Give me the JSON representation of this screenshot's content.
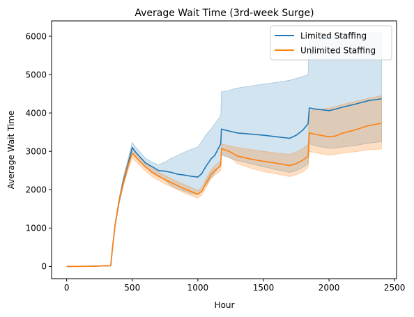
{
  "chart_data": {
    "type": "line",
    "title": "Average Wait Time (3rd-week Surge)",
    "xlabel": "Hour",
    "ylabel": "Average Wait Time",
    "xlim": [
      -115,
      2515
    ],
    "ylim": [
      -320,
      6400
    ],
    "xticks": [
      0,
      500,
      1000,
      1500,
      2000,
      2500
    ],
    "yticks": [
      0,
      1000,
      2000,
      3000,
      4000,
      5000,
      6000
    ],
    "grid": false,
    "legend_position": "top-right",
    "series": [
      {
        "name": "Limited Staffing",
        "color": "#1f77b4",
        "band_opacity": 0.2,
        "x": [
          0,
          200,
          336,
          350,
          370,
          400,
          430,
          470,
          500,
          520,
          560,
          600,
          650,
          700,
          750,
          800,
          850,
          900,
          950,
          1000,
          1030,
          1060,
          1100,
          1130,
          1160,
          1175,
          1180,
          1250,
          1300,
          1400,
          1500,
          1600,
          1700,
          1750,
          1800,
          1840,
          1850,
          1900,
          2000,
          2050,
          2100,
          2200,
          2300,
          2400
        ],
        "y": [
          0,
          5,
          20,
          500,
          1100,
          1700,
          2200,
          2700,
          3100,
          3000,
          2850,
          2700,
          2600,
          2500,
          2480,
          2450,
          2400,
          2380,
          2350,
          2330,
          2420,
          2600,
          2800,
          2900,
          3100,
          3200,
          3580,
          3520,
          3480,
          3450,
          3420,
          3380,
          3340,
          3420,
          3550,
          3720,
          4130,
          4100,
          4060,
          4100,
          4150,
          4230,
          4320,
          4370
        ],
        "upper": [
          0,
          5,
          20,
          520,
          1150,
          1780,
          2300,
          2820,
          3230,
          3130,
          2980,
          2820,
          2720,
          2650,
          2720,
          2820,
          2900,
          2980,
          3050,
          3120,
          3260,
          3420,
          3580,
          3720,
          3860,
          3950,
          4550,
          4600,
          4650,
          4700,
          4750,
          4800,
          4850,
          4900,
          4950,
          5000,
          5920,
          5950,
          5990,
          6010,
          6030,
          6060,
          6090,
          6110
        ],
        "lower": [
          0,
          5,
          20,
          480,
          1050,
          1620,
          2100,
          2580,
          2970,
          2870,
          2720,
          2580,
          2480,
          2380,
          2240,
          2100,
          2020,
          1960,
          1900,
          1870,
          1960,
          2120,
          2300,
          2440,
          2580,
          2700,
          2900,
          2820,
          2760,
          2680,
          2600,
          2520,
          2450,
          2500,
          2580,
          2680,
          3200,
          3140,
          3080,
          3090,
          3110,
          3150,
          3210,
          3250
        ]
      },
      {
        "name": "Unlimited Staffing",
        "color": "#ff7f0e",
        "band_opacity": 0.25,
        "x": [
          0,
          200,
          336,
          350,
          370,
          400,
          430,
          470,
          500,
          520,
          560,
          600,
          650,
          700,
          750,
          800,
          850,
          900,
          950,
          1000,
          1030,
          1060,
          1100,
          1130,
          1160,
          1175,
          1180,
          1250,
          1300,
          1400,
          1500,
          1600,
          1700,
          1750,
          1800,
          1840,
          1850,
          1900,
          2000,
          2050,
          2100,
          2200,
          2300,
          2400
        ],
        "y": [
          0,
          5,
          20,
          500,
          1100,
          1700,
          2150,
          2650,
          2950,
          2880,
          2730,
          2600,
          2450,
          2350,
          2260,
          2180,
          2100,
          2020,
          1950,
          1880,
          1960,
          2150,
          2400,
          2500,
          2580,
          2640,
          3070,
          2980,
          2880,
          2800,
          2740,
          2690,
          2630,
          2680,
          2770,
          2870,
          3480,
          3440,
          3380,
          3400,
          3470,
          3560,
          3670,
          3730
        ],
        "upper": [
          0,
          5,
          20,
          520,
          1150,
          1760,
          2240,
          2760,
          3080,
          3000,
          2850,
          2710,
          2560,
          2460,
          2370,
          2290,
          2210,
          2130,
          2060,
          1980,
          2060,
          2260,
          2510,
          2620,
          2710,
          2770,
          3190,
          3140,
          3100,
          3050,
          3000,
          2960,
          2920,
          2980,
          3070,
          3180,
          4050,
          4080,
          4130,
          4170,
          4220,
          4300,
          4380,
          4450
        ],
        "lower": [
          0,
          5,
          20,
          480,
          1050,
          1640,
          2060,
          2540,
          2820,
          2760,
          2610,
          2490,
          2340,
          2240,
          2150,
          2070,
          1990,
          1910,
          1840,
          1780,
          1860,
          2040,
          2290,
          2380,
          2450,
          2510,
          2950,
          2830,
          2680,
          2560,
          2470,
          2410,
          2340,
          2390,
          2460,
          2580,
          3000,
          2960,
          2900,
          2920,
          2950,
          2990,
          3040,
          3060
        ]
      }
    ]
  }
}
